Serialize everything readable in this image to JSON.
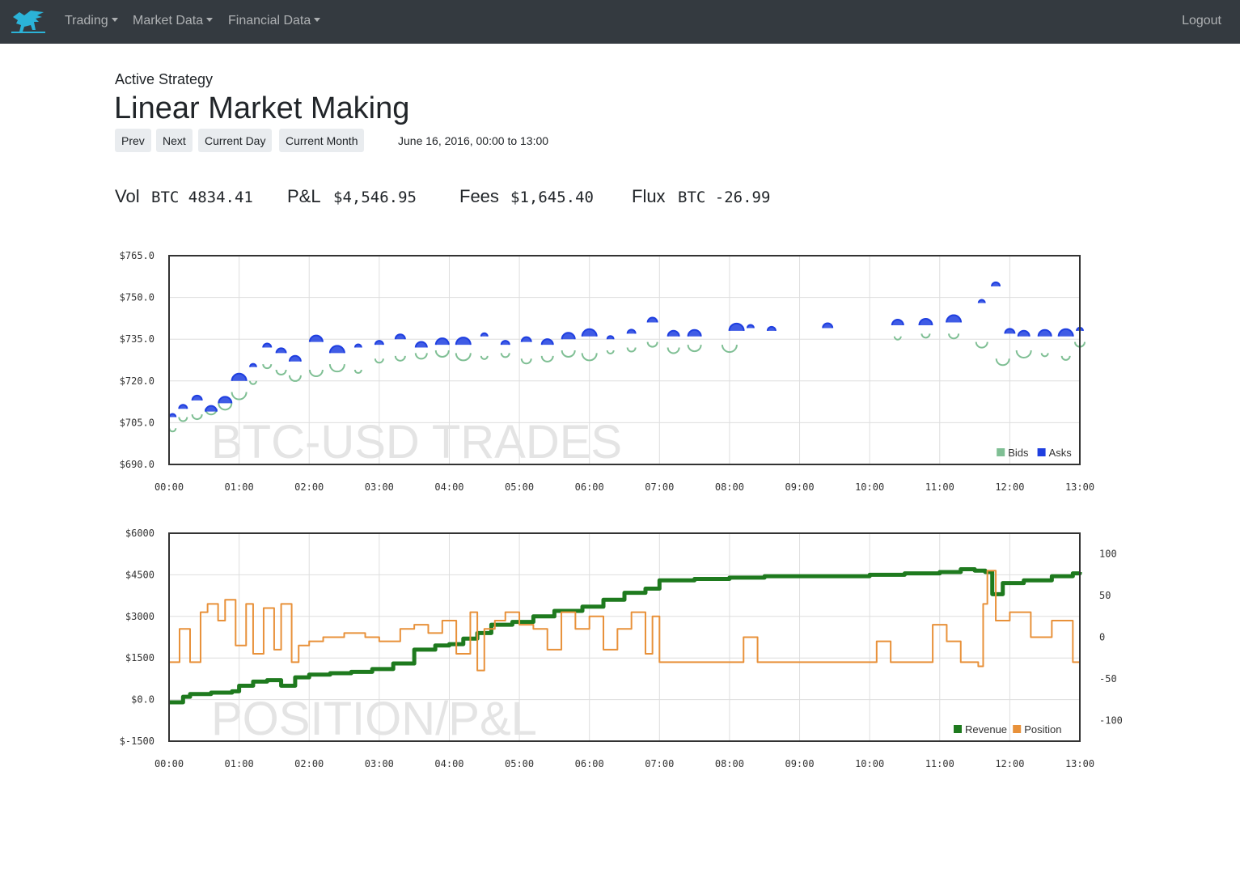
{
  "navbar": {
    "brand_icon": "griffin-logo-icon",
    "menus": [
      {
        "label": "Trading"
      },
      {
        "label": "Market Data"
      },
      {
        "label": "Financial Data"
      }
    ],
    "logout_label": "Logout"
  },
  "header": {
    "subtitle": "Active Strategy",
    "title": "Linear Market Making"
  },
  "controls": {
    "prev": "Prev",
    "next": "Next",
    "current_day": "Current Day",
    "current_month": "Current Month",
    "date_range": "June 16, 2016, 00:00 to 13:00"
  },
  "stats": {
    "vol_label": "Vol",
    "vol_value": "BTC 4834.41",
    "pnl_label": "P&L",
    "pnl_value": "$4,546.95",
    "fees_label": "Fees",
    "fees_value": "$1,645.40",
    "flux_label": "Flux",
    "flux_value": "BTC -26.99"
  },
  "chart_data": [
    {
      "type": "scatter",
      "title": "BTC-USD TRADES",
      "x_ticks": [
        "00:00",
        "01:00",
        "02:00",
        "03:00",
        "04:00",
        "05:00",
        "06:00",
        "07:00",
        "08:00",
        "09:00",
        "10:00",
        "11:00",
        "12:00",
        "13:00"
      ],
      "xlim": [
        0,
        13
      ],
      "ylim": [
        690,
        765
      ],
      "y_ticks": [
        "$765.0",
        "$750.0",
        "$735.0",
        "$720.0",
        "$705.0",
        "$690.0"
      ],
      "y_tick_values": [
        765,
        750,
        735,
        720,
        705,
        690
      ],
      "grid": true,
      "legend": "bottom-right",
      "colors": {
        "Bids": "#7fbf94",
        "Asks": "#1f3fe0"
      },
      "series": [
        {
          "name": "Bids",
          "points": [
            [
              0.05,
              703
            ],
            [
              0.2,
              707
            ],
            [
              0.4,
              708
            ],
            [
              0.6,
              710
            ],
            [
              0.8,
              712
            ],
            [
              1.0,
              716
            ],
            [
              1.2,
              720
            ],
            [
              1.4,
              726
            ],
            [
              1.6,
              724
            ],
            [
              1.8,
              722
            ],
            [
              2.1,
              724
            ],
            [
              2.4,
              726
            ],
            [
              2.7,
              724
            ],
            [
              3.0,
              728
            ],
            [
              3.3,
              729
            ],
            [
              3.6,
              730
            ],
            [
              3.9,
              731
            ],
            [
              4.2,
              730
            ],
            [
              4.5,
              729
            ],
            [
              4.8,
              730
            ],
            [
              5.1,
              728
            ],
            [
              5.4,
              729
            ],
            [
              5.7,
              731
            ],
            [
              6.0,
              730
            ],
            [
              6.3,
              731
            ],
            [
              6.6,
              732
            ],
            [
              6.9,
              734
            ],
            [
              7.2,
              732
            ],
            [
              7.5,
              733
            ],
            [
              8.0,
              733
            ],
            [
              10.4,
              736
            ],
            [
              10.8,
              737
            ],
            [
              11.2,
              737
            ],
            [
              11.6,
              734
            ],
            [
              11.9,
              728
            ],
            [
              12.2,
              731
            ],
            [
              12.5,
              730
            ],
            [
              12.8,
              729
            ],
            [
              13.0,
              734
            ]
          ]
        },
        {
          "name": "Asks",
          "points": [
            [
              0.05,
              707
            ],
            [
              0.2,
              710
            ],
            [
              0.4,
              713
            ],
            [
              0.6,
              709
            ],
            [
              0.8,
              712
            ],
            [
              1.0,
              720
            ],
            [
              1.2,
              725
            ],
            [
              1.4,
              732
            ],
            [
              1.6,
              730
            ],
            [
              1.8,
              727
            ],
            [
              2.1,
              734
            ],
            [
              2.4,
              730
            ],
            [
              2.7,
              732
            ],
            [
              3.0,
              733
            ],
            [
              3.3,
              735
            ],
            [
              3.6,
              732
            ],
            [
              3.9,
              733
            ],
            [
              4.2,
              733
            ],
            [
              4.5,
              736
            ],
            [
              4.8,
              733
            ],
            [
              5.1,
              734
            ],
            [
              5.4,
              733
            ],
            [
              5.7,
              735
            ],
            [
              6.0,
              736
            ],
            [
              6.3,
              735
            ],
            [
              6.6,
              737
            ],
            [
              6.9,
              741
            ],
            [
              7.2,
              736
            ],
            [
              7.5,
              736
            ],
            [
              8.1,
              738
            ],
            [
              8.3,
              739
            ],
            [
              8.6,
              738
            ],
            [
              9.4,
              739
            ],
            [
              10.4,
              740
            ],
            [
              10.8,
              740
            ],
            [
              11.2,
              741
            ],
            [
              11.6,
              748
            ],
            [
              11.8,
              754
            ],
            [
              12.0,
              737
            ],
            [
              12.2,
              736
            ],
            [
              12.5,
              736
            ],
            [
              12.8,
              736
            ],
            [
              13.0,
              738
            ]
          ]
        }
      ]
    },
    {
      "type": "line",
      "title": "POSITION/P&L",
      "x_ticks": [
        "00:00",
        "01:00",
        "02:00",
        "03:00",
        "04:00",
        "05:00",
        "06:00",
        "07:00",
        "08:00",
        "09:00",
        "10:00",
        "11:00",
        "12:00",
        "13:00"
      ],
      "xlim": [
        0,
        13
      ],
      "ylim": [
        -1500,
        6000
      ],
      "y_ticks": [
        "$6000",
        "$4500",
        "$3000",
        "$1500",
        "$0.0",
        "$-1500"
      ],
      "y_tick_values": [
        6000,
        4500,
        3000,
        1500,
        0,
        -1500
      ],
      "y2lim": [
        -125,
        125
      ],
      "y2_ticks": [
        "100",
        "50",
        "0",
        "-50",
        "-100"
      ],
      "y2_tick_values": [
        100,
        50,
        0,
        -50,
        -100
      ],
      "grid": true,
      "legend": "bottom-right",
      "colors": {
        "Revenue": "#1e7a1e",
        "Position": "#e8913a"
      },
      "series": [
        {
          "name": "Revenue",
          "axis": "left",
          "x": [
            0,
            0.2,
            0.3,
            0.6,
            0.9,
            1.0,
            1.2,
            1.4,
            1.6,
            1.8,
            2.0,
            2.3,
            2.6,
            2.9,
            3.2,
            3.5,
            3.8,
            4.0,
            4.2,
            4.4,
            4.6,
            4.9,
            5.2,
            5.5,
            5.9,
            6.2,
            6.5,
            6.8,
            7.0,
            7.5,
            8.0,
            8.5,
            9.0,
            9.5,
            10.0,
            10.5,
            11.0,
            11.3,
            11.5,
            11.65,
            11.75,
            11.9,
            12.2,
            12.6,
            12.9,
            13.0
          ],
          "values": [
            -100,
            100,
            200,
            250,
            300,
            500,
            650,
            700,
            500,
            800,
            900,
            950,
            1000,
            1100,
            1300,
            1800,
            1950,
            2000,
            2200,
            2400,
            2700,
            2800,
            3000,
            3200,
            3350,
            3600,
            3850,
            4000,
            4300,
            4350,
            4400,
            4450,
            4450,
            4450,
            4500,
            4550,
            4600,
            4700,
            4650,
            4600,
            3800,
            4200,
            4300,
            4450,
            4550,
            4600
          ]
        },
        {
          "name": "Position",
          "axis": "right",
          "x": [
            0,
            0.15,
            0.3,
            0.45,
            0.55,
            0.7,
            0.8,
            0.95,
            1.1,
            1.2,
            1.35,
            1.5,
            1.6,
            1.75,
            1.85,
            2.0,
            2.2,
            2.5,
            2.8,
            3.0,
            3.3,
            3.5,
            3.7,
            3.9,
            4.1,
            4.3,
            4.4,
            4.5,
            4.65,
            4.8,
            5.0,
            5.2,
            5.4,
            5.6,
            5.8,
            6.0,
            6.2,
            6.4,
            6.6,
            6.8,
            6.9,
            7.0,
            7.3,
            7.6,
            8.0,
            8.2,
            8.4,
            8.6,
            9.0,
            9.4,
            9.8,
            10.1,
            10.3,
            10.6,
            10.9,
            11.1,
            11.3,
            11.45,
            11.55,
            11.62,
            11.68,
            11.8,
            12.0,
            12.3,
            12.6,
            12.9,
            13.0
          ],
          "values": [
            -30,
            10,
            -30,
            30,
            40,
            20,
            45,
            -10,
            40,
            -20,
            35,
            -15,
            40,
            -30,
            -10,
            -5,
            0,
            5,
            0,
            -5,
            10,
            15,
            5,
            20,
            -20,
            30,
            -40,
            10,
            20,
            30,
            15,
            10,
            -15,
            30,
            10,
            25,
            -15,
            10,
            30,
            -20,
            25,
            -30,
            -30,
            -30,
            -30,
            0,
            -30,
            -30,
            -30,
            -30,
            -30,
            -5,
            -30,
            -30,
            15,
            -5,
            -30,
            -30,
            -35,
            40,
            80,
            20,
            30,
            0,
            20,
            -30,
            -30
          ]
        }
      ]
    }
  ]
}
